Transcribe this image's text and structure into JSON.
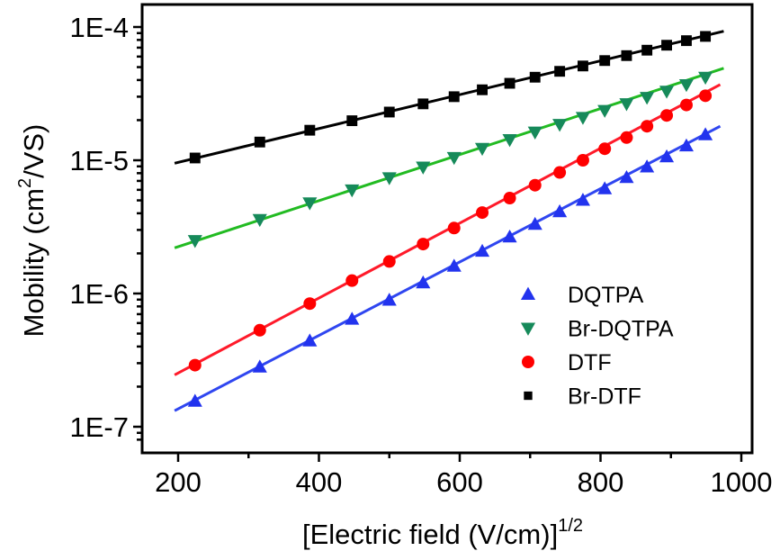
{
  "chart_data": {
    "type": "scatter",
    "title": "",
    "xlabel": "[Electric field (V/cm)]",
    "xlabel_superscript": "1/2",
    "ylabel_prefix": "Mobility (cm",
    "ylabel_superscript": "2",
    "ylabel_suffix": "/VS)",
    "xlim": [
      150,
      1010
    ],
    "ylim": [
      7e-08,
      0.00014
    ],
    "yscale": "log",
    "grid": false,
    "legend_position": "bottom-right",
    "x_ticks": [
      200,
      400,
      600,
      800,
      1000
    ],
    "x_tick_labels": [
      "200",
      "400",
      "600",
      "800",
      "1000"
    ],
    "y_ticks": [
      1e-07,
      1e-06,
      1e-05,
      0.0001
    ],
    "y_tick_labels": [
      "1E-7",
      "1E-6",
      "1E-5",
      "1E-4"
    ],
    "x": [
      224,
      316,
      387,
      447,
      500,
      548,
      592,
      632,
      671,
      707,
      742,
      775,
      806,
      837,
      866,
      894,
      922,
      949
    ],
    "series": [
      {
        "name": "DQTPA",
        "marker": "triangle-up",
        "marker_color": "#2233ee",
        "line_color": "#2f46f0",
        "values": [
          1.55e-07,
          2.8e-07,
          4.4e-07,
          6.4e-07,
          8.9e-07,
          1.2e-06,
          1.6e-06,
          2.07e-06,
          2.65e-06,
          3.3e-06,
          4.1e-06,
          5e-06,
          6.1e-06,
          7.4e-06,
          8.9e-06,
          1.06e-05,
          1.28e-05,
          1.55e-05
        ],
        "fit_x": [
          195,
          970
        ],
        "fit_y": [
          1.32e-07,
          1.8e-05
        ]
      },
      {
        "name": "Br-DQTPA",
        "marker": "triangle-down",
        "marker_color": "#168a5a",
        "line_color": "#22bb22",
        "values": [
          2.5e-06,
          3.6e-06,
          4.8e-06,
          6e-06,
          7.4e-06,
          8.9e-06,
          1.05e-05,
          1.23e-05,
          1.43e-05,
          1.63e-05,
          1.86e-05,
          2.1e-05,
          2.37e-05,
          2.66e-05,
          2.97e-05,
          3.3e-05,
          3.7e-05,
          4.2e-05
        ],
        "fit_x": [
          195,
          975
        ],
        "fit_y": [
          2.2e-06,
          4.9e-05
        ]
      },
      {
        "name": "DTF",
        "marker": "circle",
        "marker_color": "#ff0000",
        "line_color": "#ff1a2a",
        "values": [
          2.9e-07,
          5.3e-07,
          8.4e-07,
          1.25e-06,
          1.74e-06,
          2.35e-06,
          3.1e-06,
          4.05e-06,
          5.2e-06,
          6.5e-06,
          8.1e-06,
          1e-05,
          1.22e-05,
          1.48e-05,
          1.8e-05,
          2.17e-05,
          2.6e-05,
          3.05e-05
        ],
        "fit_x": [
          195,
          970
        ],
        "fit_y": [
          2.45e-07,
          3.7e-05
        ]
      },
      {
        "name": "Br-DTF",
        "marker": "square",
        "marker_color": "#000000",
        "line_color": "#000000",
        "values": [
          1.04e-05,
          1.37e-05,
          1.68e-05,
          1.98e-05,
          2.3e-05,
          2.65e-05,
          3e-05,
          3.38e-05,
          3.78e-05,
          4.2e-05,
          4.65e-05,
          5.1e-05,
          5.6e-05,
          6.1e-05,
          6.7e-05,
          7.3e-05,
          7.9e-05,
          8.5e-05
        ],
        "fit_x": [
          195,
          975
        ],
        "fit_y": [
          9.5e-06,
          9.3e-05
        ]
      }
    ]
  }
}
